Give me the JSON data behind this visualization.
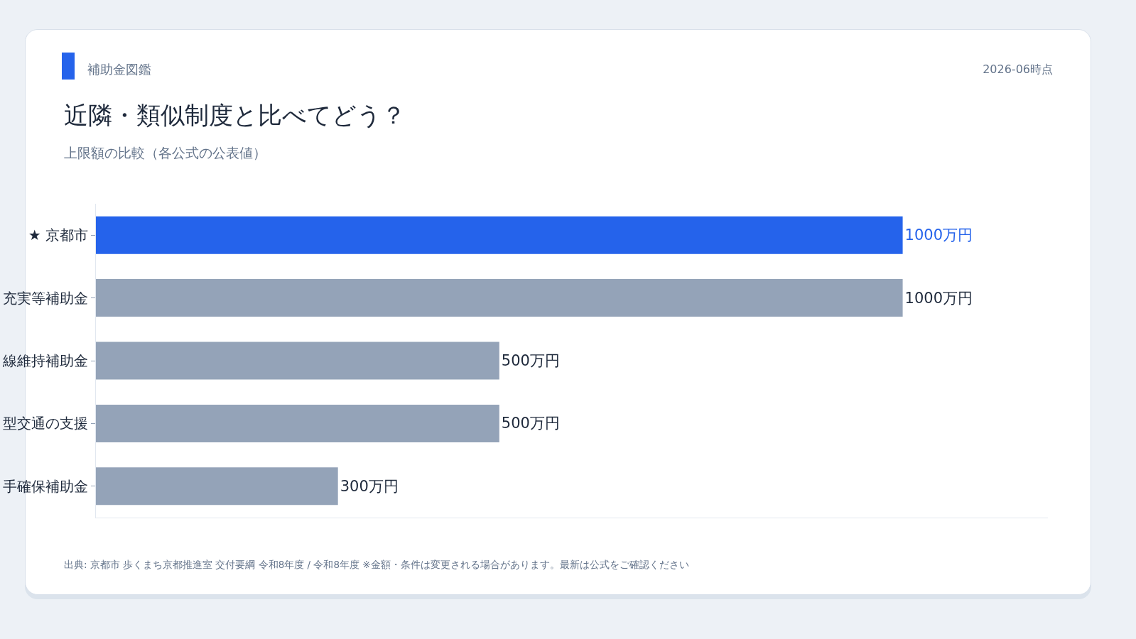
{
  "chart_data": {
    "type": "bar",
    "orientation": "horizontal",
    "title": "近隣・類似制度と比べてどう？",
    "subtitle": "上限額の比較（各公式の公表値）",
    "annotations": [
      "補助金図鑑",
      "2026-06時点",
      "出典: 京都市 歩くまち京都推進室 交付要綱 令和8年度 / 令和8年度 ※金額・条件は変更される場合があります。最新は公式をご確認ください"
    ],
    "categories": [
      "★ 京都市",
      "充実等補助金",
      "線維持補助金",
      "型交通の支援",
      "手確保補助金"
    ],
    "values": [
      1000,
      1000,
      500,
      500,
      300
    ],
    "value_labels": [
      "1000万円",
      "1000万円",
      "500万円",
      "500万円",
      "300万円"
    ],
    "colors": [
      "#2563eb",
      "#94a3b8",
      "#94a3b8",
      "#94a3b8",
      "#94a3b8"
    ],
    "xlim": [
      0,
      1180
    ],
    "tick_labels": "y"
  }
}
